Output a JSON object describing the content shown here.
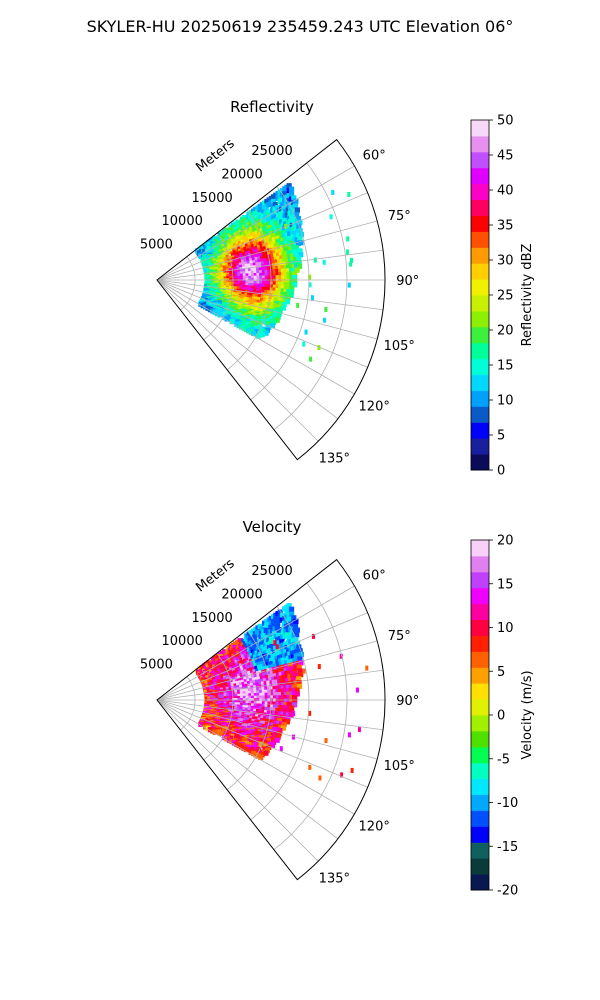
{
  "suptitle": "SKYLER-HU  20250619  235459.243 UTC Elevation 06°",
  "chart_data": [
    {
      "type": "heatmap",
      "projection": "polar-sector",
      "title": "Reflectivity",
      "range_label": "Meters",
      "range_ticks": [
        5000,
        10000,
        15000,
        20000,
        25000
      ],
      "range_max": 30000,
      "azimuth_range_deg": [
        52,
        142
      ],
      "azimuth_ticks": [
        "60°",
        "75°",
        "90°",
        "105°",
        "120°",
        "135°"
      ],
      "azimuth_tick_values": [
        60,
        75,
        90,
        105,
        120,
        135
      ],
      "grid": true,
      "colorbar": {
        "label": "Reflectivity dBZ",
        "min": 0,
        "max": 50,
        "ticks": [
          0,
          5,
          10,
          15,
          20,
          25,
          30,
          35,
          40,
          45,
          50
        ],
        "colors": [
          "#0b0b5a",
          "#1a1f9e",
          "#0000ff",
          "#0a5ac8",
          "#00a0ff",
          "#00d8ff",
          "#00ffd8",
          "#00ff9a",
          "#3cf03c",
          "#8cf000",
          "#c8f000",
          "#f0f000",
          "#ffd000",
          "#ff9a00",
          "#ff5000",
          "#ff0000",
          "#ff0060",
          "#ff00c8",
          "#e000ff",
          "#c050ff",
          "#e890f0",
          "#f8d8f8"
        ]
      }
    },
    {
      "type": "heatmap",
      "projection": "polar-sector",
      "title": "Velocity",
      "range_label": "Meters",
      "range_ticks": [
        5000,
        10000,
        15000,
        20000,
        25000
      ],
      "range_max": 30000,
      "azimuth_range_deg": [
        52,
        142
      ],
      "azimuth_ticks": [
        "60°",
        "75°",
        "90°",
        "105°",
        "120°",
        "135°"
      ],
      "azimuth_tick_values": [
        60,
        75,
        90,
        105,
        120,
        135
      ],
      "grid": true,
      "colorbar": {
        "label": "Velocity (m/s)",
        "min": -20,
        "max": 20,
        "ticks": [
          -20,
          -15,
          -10,
          -5,
          0,
          5,
          10,
          15,
          20
        ],
        "colors": [
          "#081850",
          "#0a3a3a",
          "#106060",
          "#0000ff",
          "#0050ff",
          "#00a8ff",
          "#00e8ff",
          "#00ffc0",
          "#00ff50",
          "#50e000",
          "#a0f000",
          "#e0f000",
          "#ffe000",
          "#ffa000",
          "#ff6000",
          "#ff2000",
          "#ff0040",
          "#ff00a0",
          "#f000ff",
          "#c040ff",
          "#e080f0",
          "#f8d0f8"
        ]
      }
    }
  ]
}
